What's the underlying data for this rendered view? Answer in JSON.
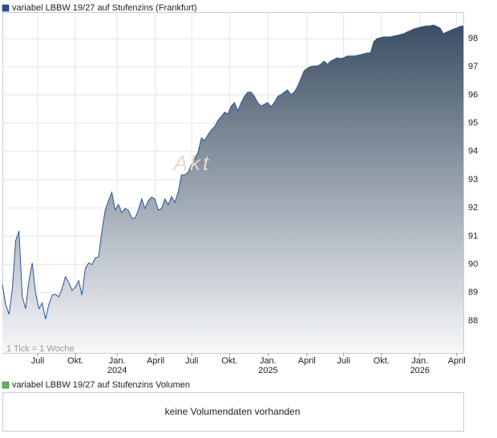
{
  "chart_data": {
    "type": "area",
    "title": "variabel LBBW 19/27 auf Stufenzins (Frankfurt)",
    "color": "#2a5599",
    "note": "1 Tick = 1 Woche",
    "watermark": "Akt",
    "values": [
      89.28,
      88.57,
      88.23,
      89.14,
      90.84,
      91.18,
      88.85,
      88.43,
      89.42,
      90.05,
      88.99,
      88.43,
      88.63,
      88.06,
      88.57,
      88.91,
      88.94,
      88.85,
      89.14,
      89.56,
      89.36,
      89.08,
      89.19,
      89.42,
      88.91,
      89.85,
      90.05,
      89.99,
      90.22,
      90.27,
      91.18,
      91.92,
      92.26,
      92.55,
      91.92,
      92.12,
      91.84,
      91.98,
      91.92,
      91.64,
      91.64,
      91.92,
      92.32,
      91.98,
      92.26,
      92.38,
      92.32,
      91.92,
      91.98,
      92.32,
      92.12,
      92.4,
      92.2,
      92.55,
      93.17,
      93.17,
      93.26,
      93.54,
      93.74,
      93.97,
      94.48,
      94.39,
      94.59,
      94.76,
      94.88,
      95.1,
      95.24,
      95.39,
      95.33,
      95.61,
      95.73,
      95.44,
      95.73,
      95.95,
      96.1,
      96.1,
      95.95,
      95.73,
      95.61,
      95.67,
      95.73,
      95.59,
      95.73,
      95.95,
      96.01,
      96.1,
      96.18,
      96.01,
      96.1,
      96.3,
      96.58,
      96.86,
      96.95,
      97.01,
      97.03,
      97.03,
      97.09,
      97.2,
      97.09,
      97.2,
      97.26,
      97.32,
      97.29,
      97.32,
      97.38,
      97.38,
      97.38,
      97.4,
      97.43,
      97.46,
      97.49,
      97.49,
      97.89,
      98.0,
      98.03,
      98.06,
      98.06,
      98.06,
      98.09,
      98.11,
      98.14,
      98.17,
      98.23,
      98.28,
      98.34,
      98.37,
      98.4,
      98.43,
      98.45,
      98.45,
      98.48,
      98.43,
      98.37,
      98.17,
      98.23,
      98.28,
      98.34,
      98.37,
      98.43,
      98.45
    ],
    "xlim": [
      0,
      139
    ],
    "xticks": [
      {
        "value": 10.65,
        "label": "Juli"
      },
      {
        "value": 22.03,
        "label": "Okt."
      },
      {
        "value": 34.6,
        "label": "Jan.",
        "sublabel": "2024"
      },
      {
        "value": 46.2,
        "label": "April"
      },
      {
        "value": 57.1,
        "label": "Juli"
      },
      {
        "value": 68.5,
        "label": "Okt."
      },
      {
        "value": 80.1,
        "label": "Jan.",
        "sublabel": "2025"
      },
      {
        "value": 91.8,
        "label": "April"
      },
      {
        "value": 102.9,
        "label": "Juli"
      },
      {
        "value": 114.3,
        "label": "Okt."
      },
      {
        "value": 125.9,
        "label": "Jan.",
        "sublabel": "2026"
      },
      {
        "value": 137.0,
        "label": "April"
      }
    ],
    "ylim": [
      86.86,
      98.94
    ],
    "yticks": [
      88,
      89,
      90,
      91,
      92,
      93,
      94,
      95,
      96,
      97,
      98
    ],
    "grid": true,
    "volume": {
      "title": "variabel LBBW 19/27 auf Stufenzins Volumen",
      "color": "#5cb85c",
      "message": "keine Volumendaten vorhanden"
    }
  }
}
